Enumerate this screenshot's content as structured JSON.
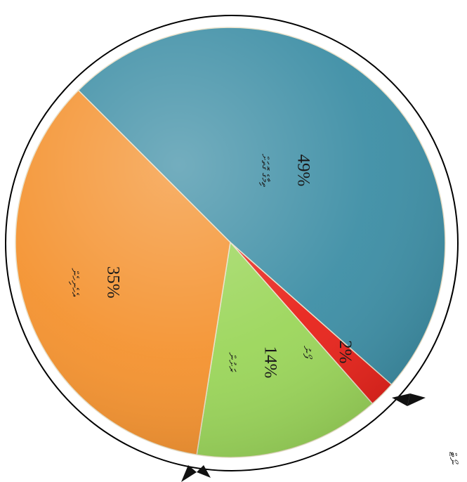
{
  "chart_data": {
    "type": "pie",
    "title": "",
    "categories": [
      "ތިމާގެ ގޮތަށް",
      "ފޯނު",
      "ރަށުން",
      "އެހެނިހެން"
    ],
    "values": [
      49,
      2,
      14,
      35
    ],
    "value_labels": [
      "49%",
      "2%",
      "14%",
      "35%"
    ],
    "colors": [
      "#3d8ea5",
      "#e8231b",
      "#9bd65a",
      "#f4922f"
    ],
    "legend": "none",
    "stray_text": "ނޯޓް"
  }
}
